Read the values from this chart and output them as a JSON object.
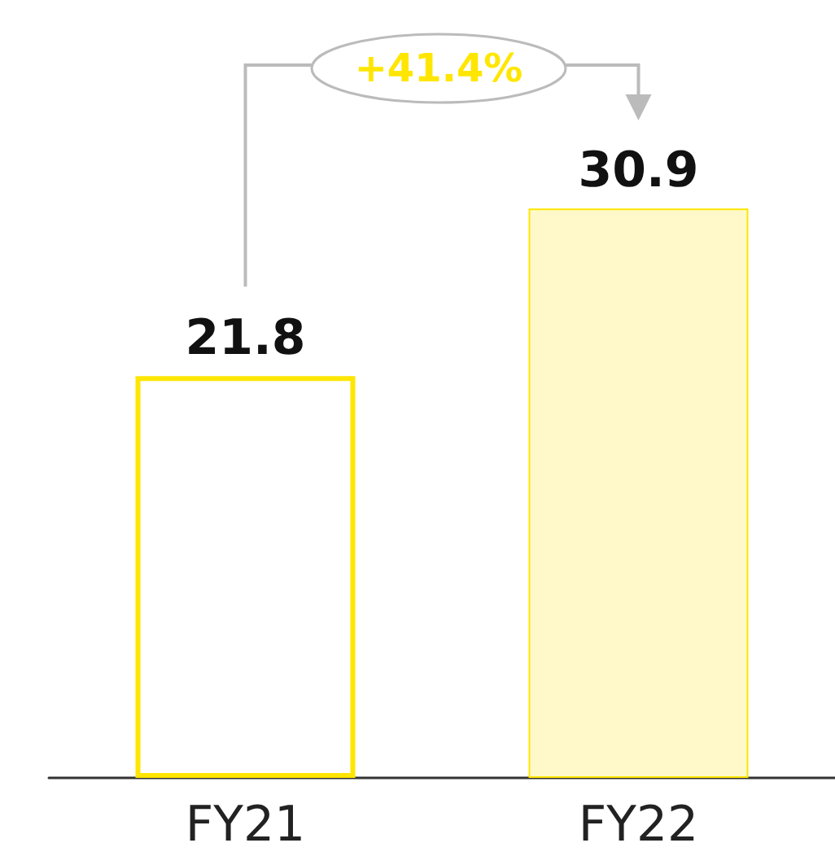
{
  "chart_data": {
    "type": "bar",
    "categories": [
      "FY21",
      "FY22"
    ],
    "values": [
      21.8,
      30.9
    ],
    "color": "#ffe600",
    "colors": [
      "#ffffff",
      "#fff9c9"
    ],
    "data_labels": true,
    "tick_labels": "x",
    "annotations": [
      "+41.4%"
    ]
  }
}
